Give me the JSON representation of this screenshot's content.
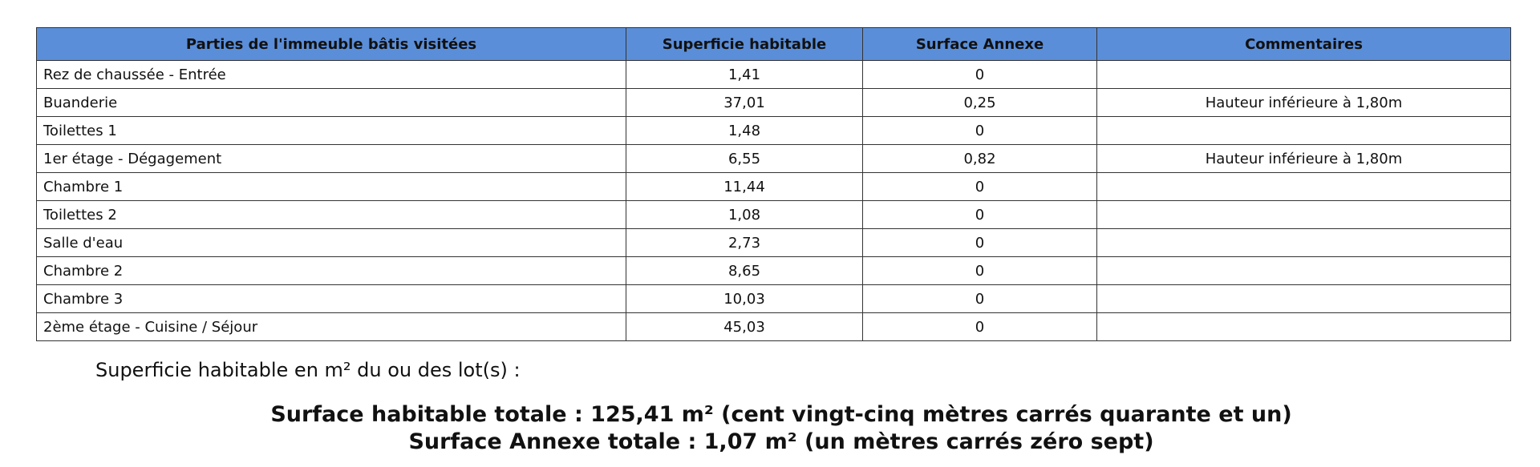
{
  "table": {
    "header": [
      "Parties de l'immeuble bâtis visitées",
      "Superficie habitable",
      "Surface Annexe",
      "Commentaires"
    ],
    "rows": [
      [
        "Rez de chaussée - Entrée",
        "1,41",
        "0",
        ""
      ],
      [
        "Buanderie",
        "37,01",
        "0,25",
        "Hauteur inférieure à 1,80m"
      ],
      [
        "Toilettes 1",
        "1,48",
        "0",
        ""
      ],
      [
        "1er étage - Dégagement",
        "6,55",
        "0,82",
        "Hauteur inférieure à 1,80m"
      ],
      [
        "Chambre 1",
        "11,44",
        "0",
        ""
      ],
      [
        "Toilettes 2",
        "1,08",
        "0",
        ""
      ],
      [
        "Salle d'eau",
        "2,73",
        "0",
        ""
      ],
      [
        "Chambre 2",
        "8,65",
        "0",
        ""
      ],
      [
        "Chambre 3",
        "10,03",
        "0",
        ""
      ],
      [
        "2ème étage - Cuisine / Séjour",
        "45,03",
        "0",
        ""
      ]
    ]
  },
  "footer": {
    "intro": "Superficie habitable en m² du ou des lot(s) :",
    "total_habitable": "Surface habitable totale : 125,41 m² (cent vingt-cinq mètres carrés quarante et un)",
    "total_annexe": "Surface Annexe totale : 1,07 m² (un mètres carrés zéro sept)"
  }
}
